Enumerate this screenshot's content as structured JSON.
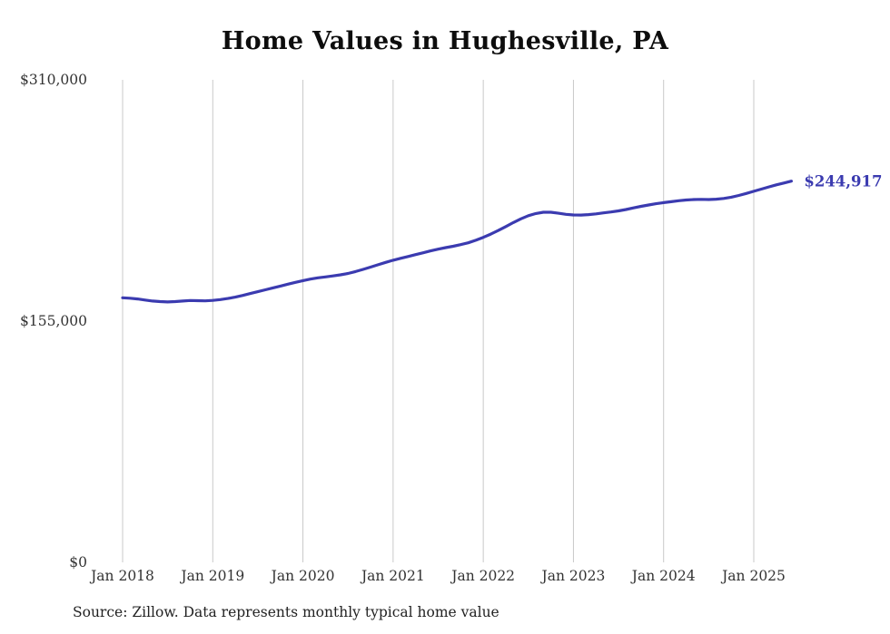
{
  "chart_data": {
    "type": "line",
    "title": "Home Values in Hughesville, PA",
    "source_note": "Source: Zillow. Data represents monthly typical home value",
    "series_name": "Monthly typical home value",
    "end_label": "$244,917",
    "end_value": 244917,
    "line_color": "#3b3bb0",
    "grid_color": "#c9c9c9",
    "legend": "none",
    "grid": "vertical-only",
    "ylim": [
      0,
      310000
    ],
    "y_ticks": [
      0,
      155000,
      310000
    ],
    "y_tick_labels": [
      "$0",
      "$155,000",
      "$310,000"
    ],
    "x_tick_labels": [
      "Jan 2018",
      "Jan 2019",
      "Jan 2020",
      "Jan 2021",
      "Jan 2022",
      "Jan 2023",
      "Jan 2024",
      "Jan 2025"
    ],
    "x_start": "2018-01",
    "x_end": "2025-06",
    "x_frequency": "monthly",
    "values": [
      170000,
      169700,
      169200,
      168500,
      167900,
      167500,
      167300,
      167500,
      167900,
      168200,
      168100,
      168000,
      168300,
      168800,
      169500,
      170400,
      171500,
      172700,
      173900,
      175100,
      176300,
      177500,
      178700,
      179900,
      181000,
      182000,
      182800,
      183400,
      184000,
      184700,
      185600,
      186800,
      188200,
      189700,
      191200,
      192700,
      194100,
      195300,
      196500,
      197700,
      198900,
      200100,
      201200,
      202200,
      203100,
      204100,
      205300,
      206900,
      208800,
      210900,
      213200,
      215700,
      218300,
      220700,
      222700,
      224100,
      224900,
      224900,
      224300,
      223600,
      223200,
      223100,
      223400,
      223900,
      224500,
      225100,
      225800,
      226700,
      227700,
      228700,
      229600,
      230400,
      231100,
      231700,
      232300,
      232800,
      233100,
      233200,
      233100,
      233300,
      233800,
      234600,
      235700,
      237000,
      238400,
      239800,
      241200,
      242500,
      243700,
      244917
    ]
  },
  "layout_note": "line chart, no markers, bold end value label at line terminus"
}
